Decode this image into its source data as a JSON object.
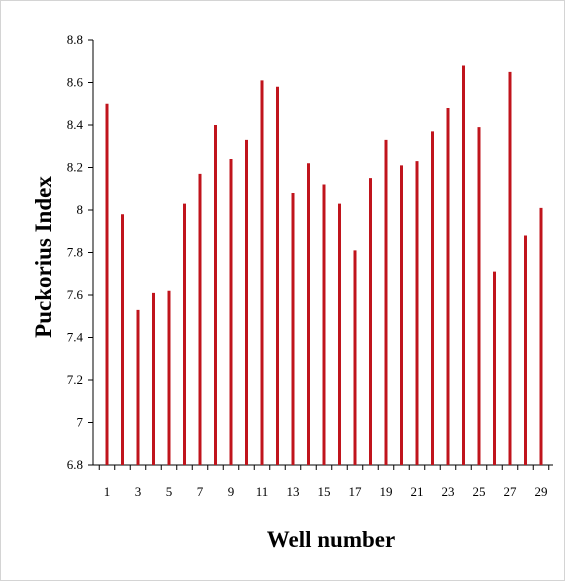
{
  "chart_data": {
    "type": "bar",
    "title": "",
    "xlabel": "Well number",
    "ylabel": "Puckorius Index",
    "ylim": [
      6.8,
      8.8
    ],
    "yticks": [
      "6.8",
      "7",
      "7.2",
      "7.4",
      "7.6",
      "7.8",
      "8",
      "8.2",
      "8.4",
      "8.6",
      "8.8"
    ],
    "ytick_values": [
      6.8,
      7.0,
      7.2,
      7.4,
      7.6,
      7.8,
      8.0,
      8.2,
      8.4,
      8.6,
      8.8
    ],
    "categories": [
      "1",
      "2",
      "3",
      "4",
      "5",
      "6",
      "7",
      "8",
      "9",
      "10",
      "11",
      "12",
      "13",
      "14",
      "15",
      "16",
      "17",
      "18",
      "19",
      "20",
      "21",
      "22",
      "23",
      "24",
      "25",
      "26",
      "27",
      "28",
      "29"
    ],
    "xtick_labels": [
      "1",
      "3",
      "5",
      "7",
      "9",
      "11",
      "13",
      "15",
      "17",
      "19",
      "21",
      "23",
      "25",
      "27",
      "29"
    ],
    "values": [
      8.5,
      7.98,
      7.53,
      7.61,
      7.62,
      8.03,
      8.17,
      8.4,
      8.24,
      8.33,
      8.61,
      8.58,
      8.08,
      8.22,
      8.12,
      8.03,
      7.81,
      8.15,
      8.33,
      8.21,
      8.23,
      8.37,
      8.48,
      8.68,
      8.39,
      7.71,
      8.65,
      7.88,
      8.01
    ],
    "grid": false,
    "bar_color": "#c0141c"
  }
}
